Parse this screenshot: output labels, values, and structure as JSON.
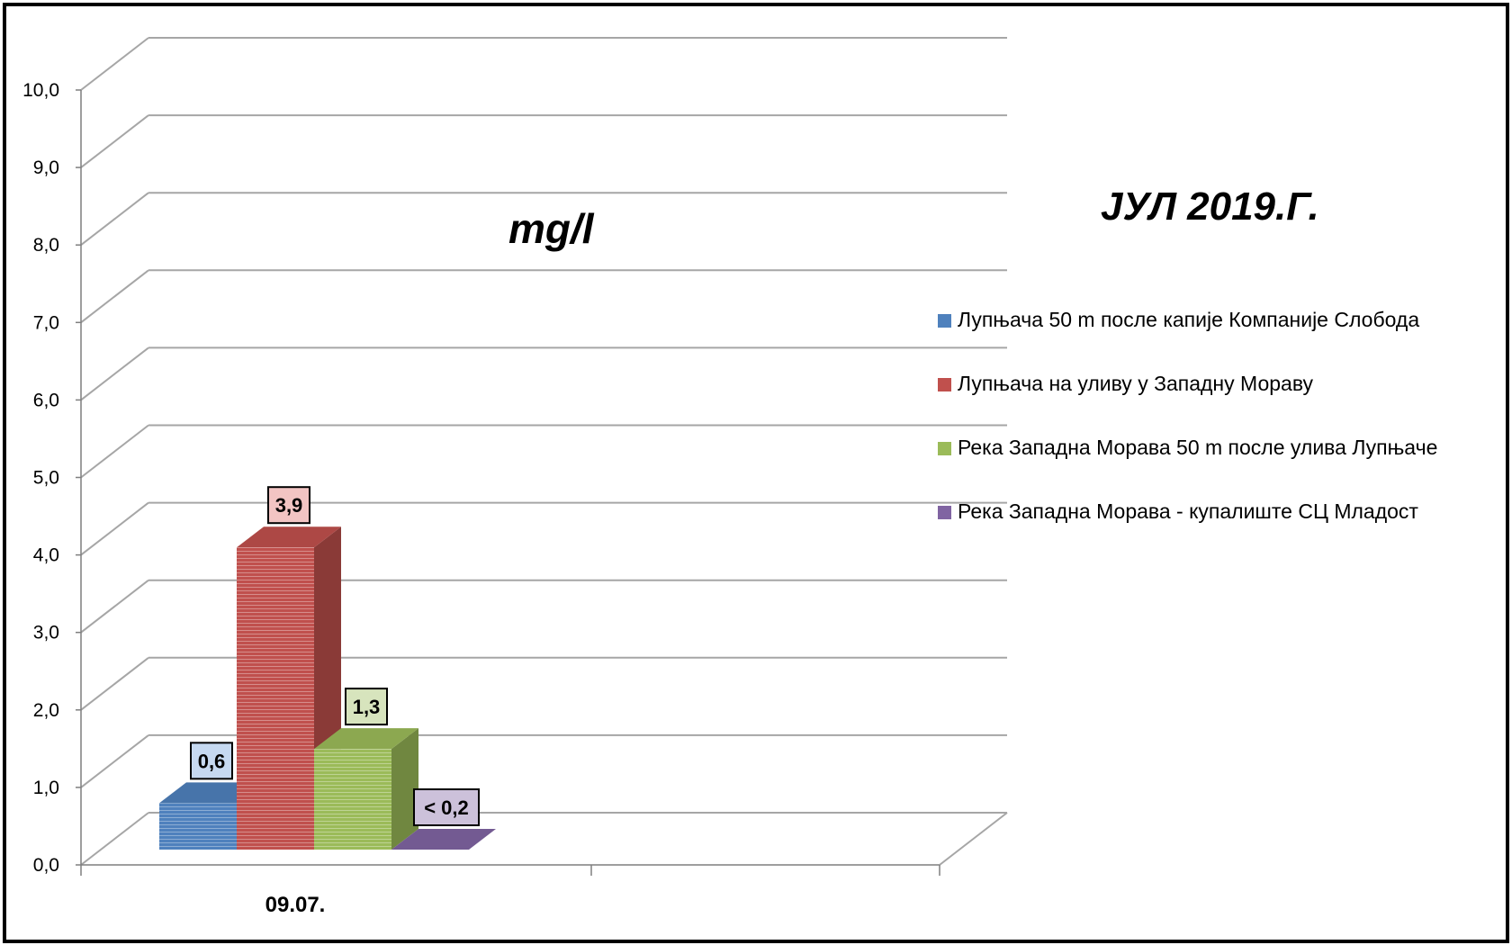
{
  "chart_data": {
    "type": "bar",
    "title": "ЈУЛ 2019.Г.",
    "unit_label": "mg/l",
    "categories": [
      "09.07."
    ],
    "y_ticks": [
      "0,0",
      "1,0",
      "2,0",
      "3,0",
      "4,0",
      "5,0",
      "6,0",
      "7,0",
      "8,0",
      "9,0",
      "10,0"
    ],
    "ylim": [
      0,
      10
    ],
    "grid": true,
    "legend_position": "right",
    "three_d": true,
    "series": [
      {
        "name": "Лупњача 50 m после капије Компаније Слобода",
        "values": [
          0.6
        ],
        "labels": [
          "0,6"
        ],
        "color": "#4F81BD",
        "label_bg": "#C6D9F1"
      },
      {
        "name": "Лупњача на уливу у Западну Мораву",
        "values": [
          3.9
        ],
        "labels": [
          "3,9"
        ],
        "color": "#C0504D",
        "label_bg": "#F2C4C3"
      },
      {
        "name": "Река Западна Морава 50 m после улива Лупњаче",
        "values": [
          1.3
        ],
        "labels": [
          "1,3"
        ],
        "color": "#9BBB59",
        "label_bg": "#D7E4BD"
      },
      {
        "name": "Река Западна Морава - купалиште СЦ Младост",
        "values": [
          0.0
        ],
        "labels": [
          "< 0,2"
        ],
        "color": "#8064A2",
        "label_bg": "#CCC1DA"
      }
    ]
  }
}
